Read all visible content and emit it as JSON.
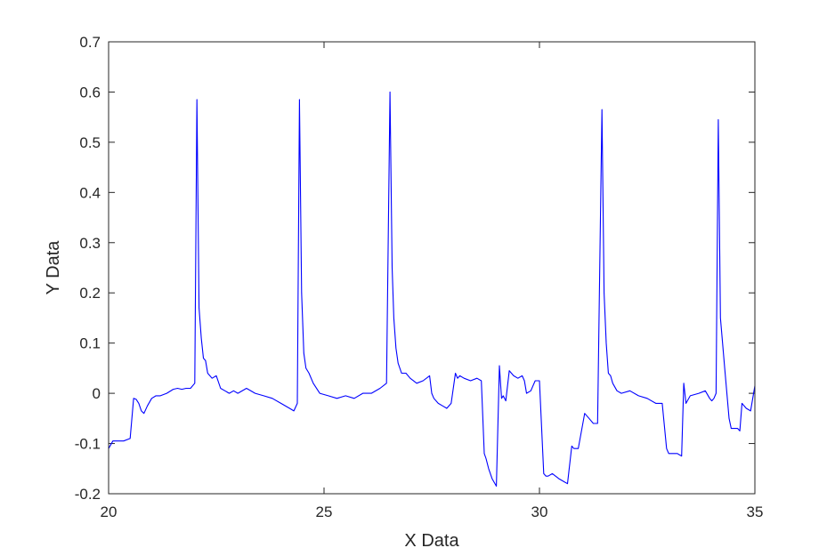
{
  "chart_data": {
    "type": "line",
    "title": "",
    "xlabel": "X Data",
    "ylabel": "Y Data",
    "xlim": [
      20,
      35
    ],
    "ylim": [
      -0.2,
      0.7
    ],
    "xticks": [
      20,
      25,
      30,
      35
    ],
    "yticks": [
      -0.2,
      -0.1,
      0,
      0.1,
      0.2,
      0.3,
      0.4,
      0.5,
      0.6,
      0.7
    ],
    "xtick_labels": [
      "20",
      "25",
      "30",
      "35"
    ],
    "ytick_labels": [
      "-0.2",
      "-0.1",
      "0",
      "0.1",
      "0.2",
      "0.3",
      "0.4",
      "0.5",
      "0.6",
      "0.7"
    ],
    "grid": false,
    "box": true,
    "series": [
      {
        "color": "#0000ff",
        "x": [
          20.0,
          20.1,
          20.2,
          20.35,
          20.5,
          20.58,
          20.64,
          20.7,
          20.76,
          20.82,
          20.9,
          21.0,
          21.1,
          21.2,
          21.35,
          21.5,
          21.6,
          21.7,
          21.8,
          21.9,
          22.0,
          22.05,
          22.1,
          22.15,
          22.2,
          22.25,
          22.3,
          22.4,
          22.5,
          22.6,
          22.7,
          22.8,
          22.9,
          23.0,
          23.2,
          23.4,
          23.6,
          23.8,
          24.0,
          24.2,
          24.3,
          24.38,
          24.43,
          24.48,
          24.53,
          24.58,
          24.65,
          24.75,
          24.9,
          25.1,
          25.3,
          25.5,
          25.7,
          25.9,
          26.1,
          26.3,
          26.45,
          26.53,
          26.58,
          26.62,
          26.67,
          26.72,
          26.8,
          26.9,
          27.0,
          27.15,
          27.3,
          27.45,
          27.5,
          27.55,
          27.65,
          27.75,
          27.85,
          27.95,
          28.05,
          28.1,
          28.15,
          28.25,
          28.4,
          28.55,
          28.65,
          28.72,
          28.76,
          28.82,
          28.9,
          29.0,
          29.07,
          29.12,
          29.16,
          29.22,
          29.3,
          29.35,
          29.4,
          29.5,
          29.6,
          29.65,
          29.7,
          29.8,
          29.9,
          30.0,
          30.1,
          30.15,
          30.2,
          30.3,
          30.45,
          30.55,
          30.65,
          30.75,
          30.8,
          30.9,
          31.05,
          31.15,
          31.25,
          31.35,
          31.45,
          31.5,
          31.55,
          31.6,
          31.65,
          31.7,
          31.8,
          31.9,
          32.1,
          32.3,
          32.5,
          32.7,
          32.85,
          32.95,
          33.0,
          33.1,
          33.2,
          33.3,
          33.35,
          33.4,
          33.5,
          33.7,
          33.85,
          33.95,
          34.0,
          34.05,
          34.1,
          34.15,
          34.2,
          34.3,
          34.4,
          34.45,
          34.5,
          34.6,
          34.65,
          34.7,
          34.8,
          34.9,
          35.0
        ],
        "y": [
          -0.11,
          -0.095,
          -0.095,
          -0.095,
          -0.09,
          -0.01,
          -0.012,
          -0.02,
          -0.035,
          -0.04,
          -0.025,
          -0.01,
          -0.005,
          -0.005,
          0.0,
          0.008,
          0.01,
          0.008,
          0.01,
          0.01,
          0.02,
          0.585,
          0.17,
          0.11,
          0.07,
          0.065,
          0.04,
          0.03,
          0.035,
          0.01,
          0.005,
          0.0,
          0.005,
          0.0,
          0.01,
          0.0,
          -0.005,
          -0.01,
          -0.02,
          -0.03,
          -0.035,
          -0.02,
          0.585,
          0.2,
          0.08,
          0.05,
          0.04,
          0.02,
          0.0,
          -0.005,
          -0.01,
          -0.005,
          -0.01,
          0.0,
          0.0,
          0.01,
          0.02,
          0.6,
          0.25,
          0.15,
          0.09,
          0.06,
          0.04,
          0.04,
          0.03,
          0.02,
          0.025,
          0.035,
          0.0,
          -0.01,
          -0.02,
          -0.025,
          -0.03,
          -0.02,
          0.04,
          0.03,
          0.035,
          0.03,
          0.025,
          0.03,
          0.025,
          -0.12,
          -0.13,
          -0.15,
          -0.17,
          -0.185,
          0.055,
          -0.01,
          -0.005,
          -0.015,
          0.045,
          0.04,
          0.035,
          0.03,
          0.035,
          0.025,
          0.0,
          0.005,
          0.025,
          0.025,
          -0.16,
          -0.165,
          -0.165,
          -0.16,
          -0.17,
          -0.175,
          -0.18,
          -0.105,
          -0.11,
          -0.11,
          -0.04,
          -0.05,
          -0.06,
          -0.06,
          0.565,
          0.2,
          0.1,
          0.04,
          0.035,
          0.02,
          0.005,
          0.0,
          0.005,
          -0.005,
          -0.01,
          -0.02,
          -0.02,
          -0.11,
          -0.12,
          -0.12,
          -0.12,
          -0.125,
          0.02,
          -0.02,
          -0.005,
          0.0,
          0.005,
          -0.01,
          -0.015,
          -0.01,
          0.0,
          0.545,
          0.15,
          0.05,
          -0.05,
          -0.07,
          -0.07,
          -0.07,
          -0.075,
          -0.02,
          -0.03,
          -0.035,
          0.015
        ]
      }
    ]
  }
}
